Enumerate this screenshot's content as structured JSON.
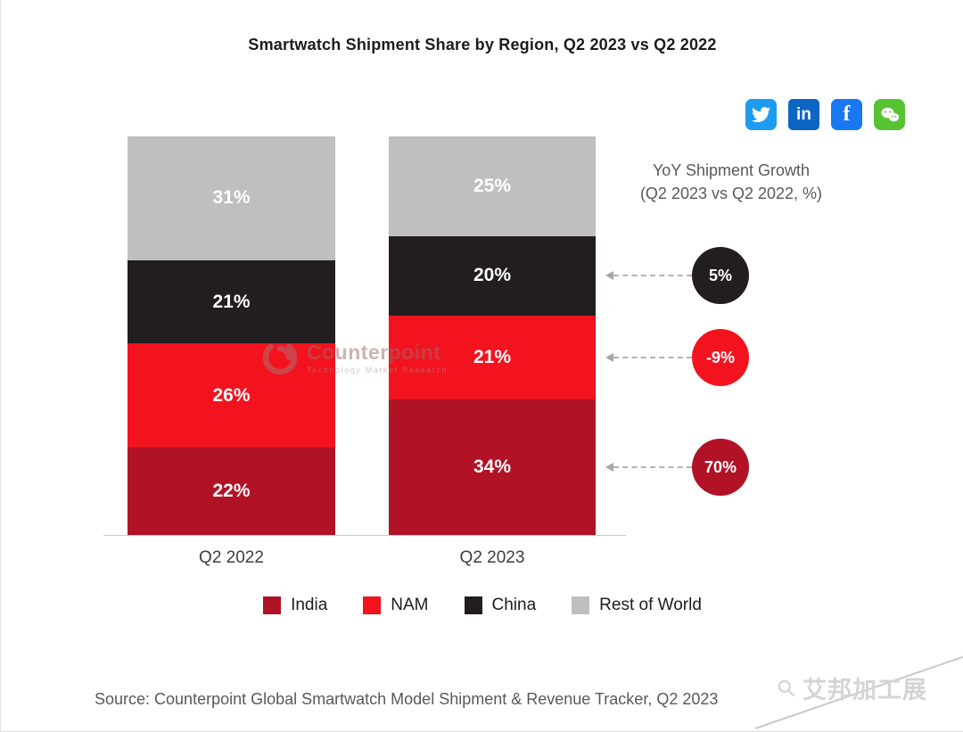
{
  "title": "Smartwatch Shipment Share by Region, Q2 2023 vs Q2 2022",
  "social": {
    "twitter_label": "Twitter",
    "linkedin_label": "in",
    "facebook_label": "f",
    "wechat_label": "WeChat"
  },
  "chart_data": {
    "type": "bar",
    "stacked": true,
    "title": "Smartwatch Shipment Share by Region, Q2 2023 vs Q2 2022",
    "categories": [
      "Q2 2022",
      "Q2 2023"
    ],
    "series": [
      {
        "name": "India",
        "color": "#B11226",
        "values": [
          22,
          34
        ]
      },
      {
        "name": "NAM",
        "color": "#F2131E",
        "values": [
          26,
          21
        ]
      },
      {
        "name": "China",
        "color": "#221D1E",
        "values": [
          21,
          20
        ]
      },
      {
        "name": "Rest of World",
        "color": "#C0BFBF",
        "values": [
          31,
          25
        ]
      }
    ],
    "value_suffix": "%",
    "ylim": [
      0,
      100
    ],
    "legend_position": "bottom",
    "growth": {
      "title_line1": "YoY Shipment Growth",
      "title_line2": "(Q2 2023 vs Q2 2022, %)",
      "items": [
        {
          "value_label": "5%",
          "series": "China",
          "color": "#221D1E"
        },
        {
          "value_label": "-9%",
          "series": "NAM",
          "color": "#F2131E"
        },
        {
          "value_label": "70%",
          "series": "India",
          "color": "#B11226"
        }
      ]
    }
  },
  "watermark": {
    "brand": "Counterpoint",
    "tagline": "Technology Market Research"
  },
  "source": "Source: Counterpoint Global Smartwatch Model Shipment & Revenue Tracker, Q2 2023",
  "corner_watermark": "艾邦加工展"
}
